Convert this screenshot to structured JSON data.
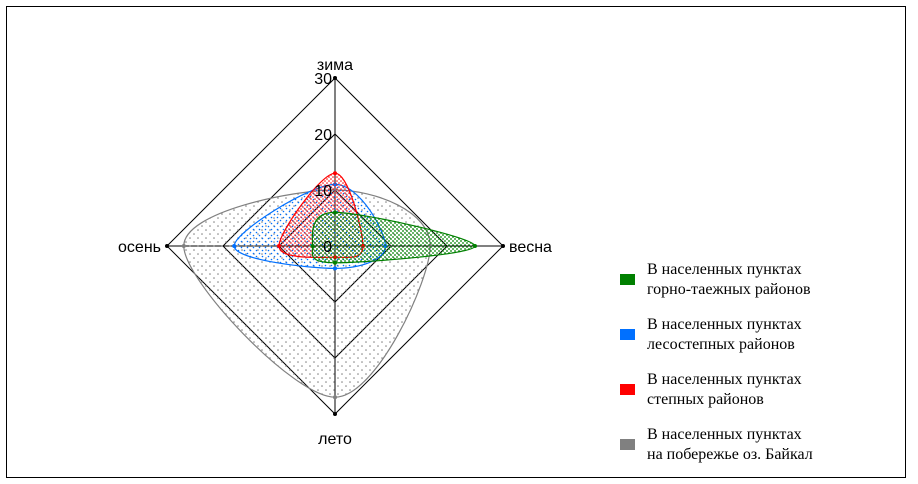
{
  "chart_data": {
    "type": "radar",
    "axes": [
      "зима",
      "весна",
      "лето",
      "осень"
    ],
    "rlim": [
      0,
      30
    ],
    "ticks": [
      "0",
      "10",
      "20",
      "30"
    ],
    "grid": true,
    "legend_position": "right",
    "series": [
      {
        "name_lines": [
          "В населенных пунктах",
          "горно-таежных районов"
        ],
        "color": "#008000",
        "values": [
          6,
          25,
          3,
          4
        ]
      },
      {
        "name_lines": [
          "В населенных пунктах",
          "лесостепных районов"
        ],
        "color": "#0070ff",
        "values": [
          11,
          9,
          4,
          18
        ]
      },
      {
        "name_lines": [
          "В населенных пунктах",
          "степных районов"
        ],
        "color": "#ff0000",
        "values": [
          13,
          5,
          2,
          10
        ]
      },
      {
        "name_lines": [
          "В населенных пунктах",
          "на побережье оз. Байкал"
        ],
        "color": "#808080",
        "values": [
          10,
          17,
          27,
          27
        ]
      }
    ]
  }
}
